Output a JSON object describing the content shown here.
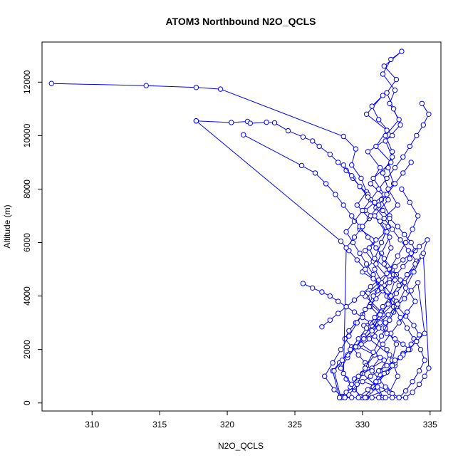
{
  "chart_data": {
    "type": "line",
    "title": "ATOM3 Northbound N2O_QCLS",
    "xlabel": "N2O_QCLS",
    "ylabel": "Altitude (m)",
    "xlim": [
      306.3,
      335.8
    ],
    "ylim": [
      -300,
      13500
    ],
    "xticks": [
      310,
      315,
      320,
      325,
      330,
      335
    ],
    "yticks": [
      0,
      2000,
      4000,
      6000,
      8000,
      10000,
      12000
    ],
    "grid": false,
    "legend": "none",
    "series": [
      {
        "color": "#0000ff",
        "markers": "open-circle",
        "x": [
          307.0,
          314.0,
          317.7,
          319.5,
          328.6,
          329.5,
          329.2,
          329.9,
          330.3,
          329.6,
          330.5,
          329.8,
          331.0,
          330.2,
          330.8,
          330.0,
          331.2,
          330.4,
          330.6,
          331.5,
          330.1,
          330.9,
          329.7,
          331.3,
          330.7,
          329.4,
          331.8,
          330.3,
          331.1,
          330.0,
          331.6,
          329.9,
          330.8,
          331.4,
          330.2,
          332.0,
          331.0,
          330.5,
          331.7,
          330.9,
          331.9,
          330.6,
          331.3,
          330.4,
          332.2,
          331.2,
          330.7,
          331.5,
          330.3,
          331.8,
          331.0,
          332.1,
          330.8,
          331.6,
          330.2,
          331.9,
          331.4,
          330.9,
          332.3,
          331.1,
          330.6,
          331.7,
          330.5,
          332.0,
          331.3,
          330.8,
          331.5,
          331.0,
          332.4,
          331.8,
          330.7,
          331.2,
          332.5,
          331.6,
          330.9,
          331.4,
          332.0,
          331.3,
          332.6,
          331.9,
          331.5,
          332.2,
          331.7,
          332.8,
          332.3,
          331.8,
          332.5,
          331.6,
          332.9,
          332.1,
          331.5,
          332.4,
          332.0,
          332.7,
          331.7,
          332.2,
          331.9,
          332.3,
          331.4,
          332.0,
          331.8,
          332.1,
          331.6,
          332.4,
          332.0,
          332.3,
          331.7,
          332.5,
          332.2,
          332.6,
          332.0
        ],
        "y": [
          11950,
          11870,
          11800,
          11740,
          9970,
          9500,
          8900,
          8400,
          7900,
          7400,
          6900,
          6500,
          6100,
          5700,
          5300,
          4900,
          4500,
          4100,
          3700,
          3300,
          2900,
          2500,
          2100,
          1700,
          1300,
          900,
          500,
          200,
          600,
          1100,
          1600,
          2200,
          2800,
          3400,
          4000,
          4600,
          5200,
          5800,
          6400,
          7000,
          7600,
          8200,
          8800,
          9400,
          10000,
          10600,
          11100,
          11500,
          10800,
          10200,
          9600,
          9000,
          8400,
          7800,
          7200,
          6600,
          6000,
          5400,
          4800,
          4200,
          3600,
          3000,
          2400,
          1800,
          1200,
          600,
          200,
          800,
          1400,
          2000,
          2600,
          3200,
          3800,
          4400,
          5000,
          5600,
          6200,
          6800,
          7400,
          8000,
          8600,
          9200,
          9800,
          10400,
          11000,
          11600,
          12100,
          12600,
          13150,
          12850,
          12300,
          11700,
          11200,
          10600,
          10000,
          9400,
          8800,
          8200,
          7600,
          7000,
          6400,
          5800,
          5200,
          4600,
          4000,
          3400,
          2800,
          2200,
          1600,
          1000,
          400
        ]
      },
      {
        "color": "#0000ff",
        "markers": "open-circle",
        "x": [
          317.7,
          320.3,
          321.5,
          321.7,
          322.9,
          323.5,
          324.5,
          325.6,
          326.3,
          326.8,
          327.6,
          328.2,
          328.8,
          329.3,
          329.8,
          330.4,
          330.9,
          331.5,
          332.0,
          332.6,
          333.1,
          333.6,
          333.9,
          333.5,
          333.0,
          332.5,
          332.0,
          331.5,
          331.0,
          330.5,
          330.0,
          329.5,
          329.0,
          328.7,
          329.2,
          329.7,
          330.2,
          330.7,
          331.2,
          331.7,
          332.2,
          332.7,
          333.2,
          333.7,
          334.2,
          334.6,
          334.3,
          333.8,
          333.3,
          332.8,
          332.3,
          331.8,
          331.3,
          330.8,
          330.3,
          329.8,
          329.3,
          328.8,
          329.4,
          330.0,
          330.6,
          331.2,
          331.8,
          332.4,
          333.0,
          333.5,
          334.0,
          334.5,
          334.9,
          334.4
        ],
        "y": [
          10550,
          10490,
          10530,
          10460,
          10500,
          10480,
          10180,
          9950,
          9800,
          9600,
          9300,
          9000,
          8700,
          8400,
          8100,
          7800,
          7500,
          7200,
          6900,
          6600,
          6300,
          6000,
          5700,
          5400,
          5100,
          4800,
          4500,
          4200,
          3900,
          3600,
          3300,
          3000,
          2700,
          2400,
          2100,
          1800,
          1500,
          1200,
          900,
          600,
          350,
          200,
          450,
          800,
          1200,
          1600,
          2000,
          2400,
          2800,
          3200,
          3600,
          4000,
          4400,
          4800,
          5200,
          5600,
          6000,
          6400,
          6800,
          7200,
          7600,
          8000,
          8400,
          8800,
          9200,
          9600,
          10000,
          10400,
          10800,
          11200
        ]
      },
      {
        "color": "#0000ff",
        "markers": "open-circle",
        "x": [
          317.7,
          328.4,
          329.0,
          329.6,
          330.2,
          330.8,
          331.4,
          332.0,
          332.6,
          333.2,
          333.8,
          334.2,
          333.6,
          333.0,
          332.4,
          331.8,
          331.2,
          330.6,
          330.0,
          329.4,
          328.8,
          328.4,
          328.9,
          329.5,
          330.1,
          330.7,
          331.3,
          331.9,
          332.5,
          333.1,
          333.7,
          334.0,
          333.4,
          332.8,
          332.2,
          331.6,
          331.0,
          330.4,
          329.8,
          329.2,
          328.6
        ],
        "y": [
          10550,
          6050,
          5700,
          5350,
          5000,
          4650,
          4300,
          3950,
          3600,
          3250,
          2900,
          2550,
          2200,
          1850,
          1500,
          1150,
          800,
          450,
          200,
          500,
          900,
          1300,
          1700,
          2100,
          2500,
          2900,
          3300,
          3700,
          4100,
          4500,
          4900,
          5300,
          5700,
          6100,
          6500,
          6900,
          7300,
          7700,
          8100,
          8500,
          8900
        ]
      },
      {
        "color": "#0000ff",
        "markers": "open-circle",
        "x": [
          321.2,
          325.5,
          326.5,
          327.3,
          328.0,
          328.6,
          329.2,
          329.8,
          330.4,
          331.0,
          331.6,
          332.2,
          332.8,
          333.4,
          333.9,
          333.3,
          332.7,
          332.1,
          331.5,
          330.9,
          330.3,
          329.7,
          329.1,
          328.5,
          327.9,
          327.2,
          327.8,
          328.4,
          329.0,
          329.6,
          330.2,
          330.8,
          331.4,
          332.0,
          332.6,
          333.2,
          333.7,
          334.1,
          333.5,
          332.9
        ],
        "y": [
          10030,
          8880,
          8600,
          8200,
          7800,
          7400,
          7000,
          6600,
          6200,
          5800,
          5400,
          5000,
          4600,
          4200,
          3800,
          3400,
          3000,
          2600,
          2200,
          1800,
          1400,
          1000,
          600,
          250,
          500,
          1000,
          1500,
          2000,
          2500,
          3000,
          3500,
          4000,
          4500,
          5000,
          5500,
          6000,
          6500,
          7000,
          7500,
          8000
        ]
      },
      {
        "color": "#0000ff",
        "markers": "open-circle",
        "x": [
          325.6,
          326.3,
          327.0,
          327.6,
          328.2,
          328.8,
          329.4,
          330.0,
          330.6,
          331.2,
          331.8,
          332.4,
          333.0,
          333.5,
          333.0,
          332.4,
          331.8,
          331.2,
          330.6,
          330.0,
          329.4,
          328.8,
          328.3,
          327.8,
          328.3,
          328.9,
          329.5,
          330.1,
          330.7,
          331.3,
          331.9,
          332.5,
          333.1,
          333.6,
          334.1,
          334.6,
          334.0,
          333.4,
          332.8,
          332.2,
          331.6,
          331.0,
          330.4,
          329.8,
          329.2,
          328.6,
          328.8,
          329.4,
          330.0,
          330.6,
          331.2,
          331.8,
          332.4,
          333.0,
          333.6
        ],
        "y": [
          4470,
          4300,
          4150,
          4000,
          3800,
          3600,
          3400,
          3200,
          3000,
          2800,
          2600,
          2400,
          2200,
          2000,
          1800,
          1600,
          1400,
          1200,
          1000,
          800,
          600,
          400,
          200,
          1200,
          1500,
          1800,
          2100,
          2400,
          2700,
          3000,
          3300,
          3600,
          3900,
          4200,
          4500,
          2600,
          2300,
          2000,
          1700,
          1400,
          1100,
          800,
          500,
          250,
          700,
          1100,
          5800,
          6200,
          6600,
          7000,
          7400,
          7800,
          8200,
          8600,
          9000
        ]
      },
      {
        "color": "#0000ff",
        "markers": "open-circle",
        "x": [
          327.0,
          327.6,
          328.2,
          328.8,
          329.4,
          330.0,
          330.6,
          331.2,
          331.8,
          332.4,
          333.0,
          333.6,
          334.2,
          334.8,
          334.4,
          333.8,
          333.2,
          332.6,
          332.0,
          331.4,
          330.8,
          330.2,
          329.6,
          329.0,
          328.4,
          327.9,
          328.5,
          329.1,
          329.7,
          330.3,
          330.9,
          331.5,
          332.1,
          332.7,
          333.3,
          333.9,
          334.5,
          334.9,
          334.6,
          334.2,
          333.7,
          333.2,
          332.7,
          332.2,
          331.7,
          331.2,
          330.7,
          330.2,
          329.7,
          329.2,
          328.7,
          328.3
        ],
        "y": [
          2850,
          3100,
          3350,
          3600,
          3850,
          4100,
          4350,
          4600,
          4850,
          5100,
          5350,
          5600,
          5850,
          6100,
          5500,
          4900,
          4300,
          3700,
          3100,
          2500,
          1900,
          1300,
          700,
          300,
          200,
          1200,
          1600,
          2000,
          2400,
          2800,
          3200,
          3600,
          4000,
          4400,
          4800,
          5200,
          5600,
          1300,
          1000,
          700,
          400,
          200,
          200,
          200,
          200,
          200,
          200,
          200,
          200,
          200,
          200,
          200
        ]
      }
    ]
  }
}
